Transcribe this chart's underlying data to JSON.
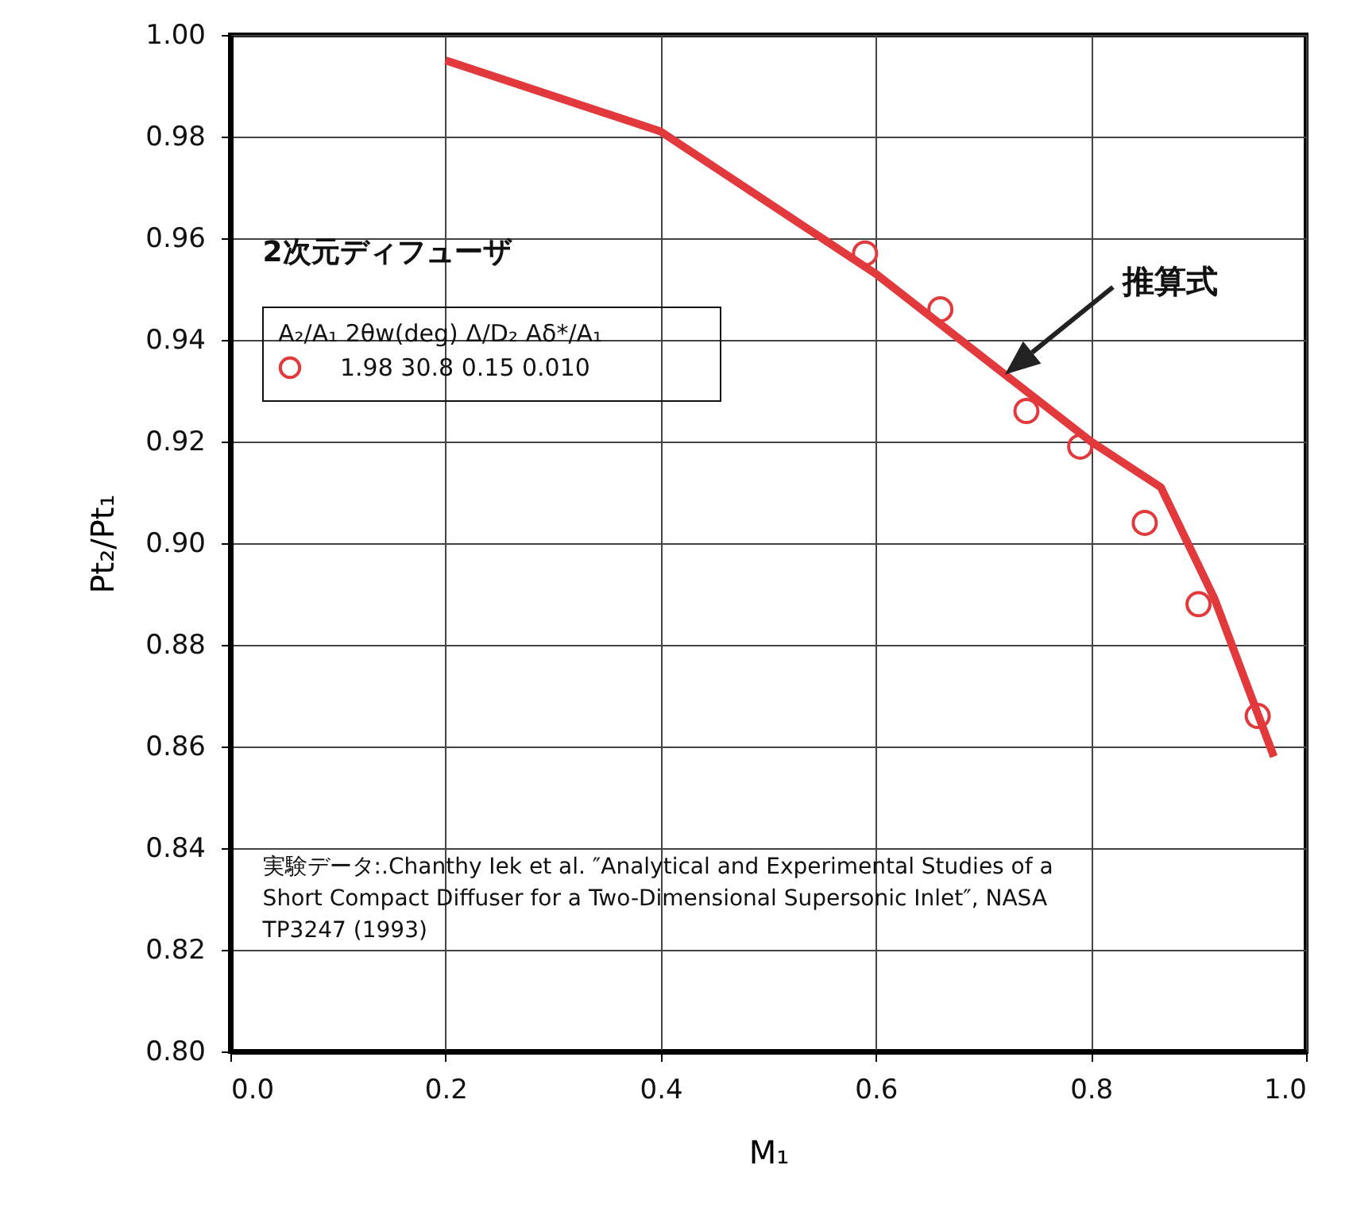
{
  "chart_data": {
    "type": "scatter",
    "xlabel": "M₁",
    "ylabel": "Pt₂/Pt₁",
    "xlim": [
      0,
      1
    ],
    "ylim": [
      0.8,
      1
    ],
    "xticks": [
      {
        "value": 0,
        "label": "0.0"
      },
      {
        "value": 0.2,
        "label": "0.2"
      },
      {
        "value": 0.4,
        "label": "0.4"
      },
      {
        "value": 0.6,
        "label": "0.6"
      },
      {
        "value": 0.8,
        "label": "0.8"
      },
      {
        "value": 1,
        "label": "1.0"
      }
    ],
    "yticks": [
      {
        "value": 0.8,
        "label": "0.80"
      },
      {
        "value": 0.82,
        "label": "0.82"
      },
      {
        "value": 0.84,
        "label": "0.84"
      },
      {
        "value": 0.86,
        "label": "0.86"
      },
      {
        "value": 0.88,
        "label": "0.88"
      },
      {
        "value": 0.9,
        "label": "0.90"
      },
      {
        "value": 0.92,
        "label": "0.92"
      },
      {
        "value": 0.94,
        "label": "0.94"
      },
      {
        "value": 0.96,
        "label": "0.96"
      },
      {
        "value": 0.98,
        "label": "0.98"
      },
      {
        "value": 1,
        "label": "1.00"
      }
    ],
    "grid": true,
    "legend": "top left",
    "legend_title": "A₂/A₁   2θw(deg)   Δ/D₂   Aδ*/A₁",
    "series": [
      {
        "type": "line",
        "color": "#e2393c",
        "x": [
          0.2,
          0.4,
          0.55,
          0.6,
          0.8,
          0.865,
          0.915,
          0.97
        ],
        "values": [
          0.995,
          0.981,
          0.96,
          0.953,
          0.92,
          0.911,
          0.889,
          0.858
        ]
      },
      {
        "name": "1.98      30.8      0.15      0.010",
        "color": "#e2393c",
        "marker": "circle",
        "x": [
          0.59,
          0.66,
          0.74,
          0.79,
          0.85,
          0.9,
          0.955
        ],
        "values": [
          0.957,
          0.946,
          0.926,
          0.919,
          0.904,
          0.888,
          0.866
        ]
      }
    ],
    "annotations": [
      "2次元ディフューザ",
      "推算式",
      "実験データ:.Chanthy Iek et al. ″Analytical and Experimental Studies of a\nShort Compact Diffuser for a Two-Dimensional Supersonic Inlet″, NASA\nTP3247 (1993)"
    ]
  }
}
